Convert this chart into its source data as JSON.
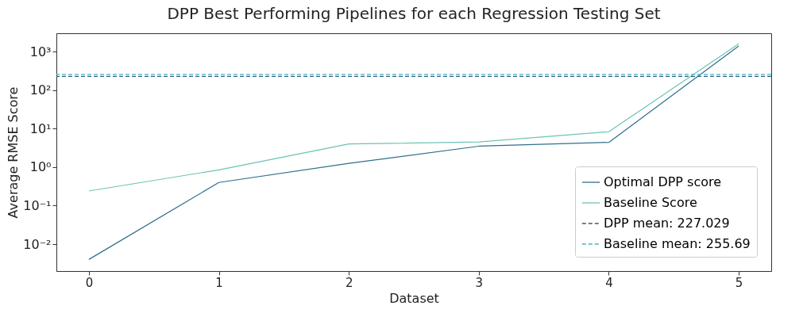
{
  "chart_data": {
    "type": "line",
    "title": "DPP Best Performing Pipelines for each Regression Testing Set",
    "xlabel": "Dataset",
    "ylabel": "Average RMSE Score",
    "x": [
      0,
      1,
      2,
      3,
      4,
      5
    ],
    "series": [
      {
        "name": "Optimal DPP score",
        "color": "#2f6f8c",
        "values": [
          0.004,
          0.4,
          1.25,
          3.5,
          4.4,
          1400
        ]
      },
      {
        "name": "Baseline Score",
        "color": "#6cc3b3",
        "values": [
          0.24,
          0.85,
          4,
          4.5,
          8.3,
          1600
        ]
      }
    ],
    "ref_lines": [
      {
        "axis": "y",
        "value": 227.029,
        "label": "DPP mean: 227.029",
        "color": "#2a5f80",
        "line_style": "dashed"
      },
      {
        "axis": "y",
        "value": 255.69,
        "label": "Baseline mean: 255.69",
        "color": "#48b4c4",
        "line_style": "dashed"
      }
    ],
    "log": "y",
    "xlim": [
      -0.25,
      5.25
    ],
    "xticks": [
      0,
      1,
      2,
      3,
      4,
      5
    ],
    "ylim": [
      0.002,
      3000
    ],
    "yticks": [
      {
        "value": 0.01,
        "label": "10⁻²"
      },
      {
        "value": 0.1,
        "label": "10⁻¹"
      },
      {
        "value": 1,
        "label": "10⁰"
      },
      {
        "value": 10,
        "label": "10¹"
      },
      {
        "value": 100,
        "label": "10²"
      },
      {
        "value": 1000,
        "label": "10³"
      }
    ],
    "legend": "bottom right",
    "line_style": "solid",
    "marker": "none"
  }
}
